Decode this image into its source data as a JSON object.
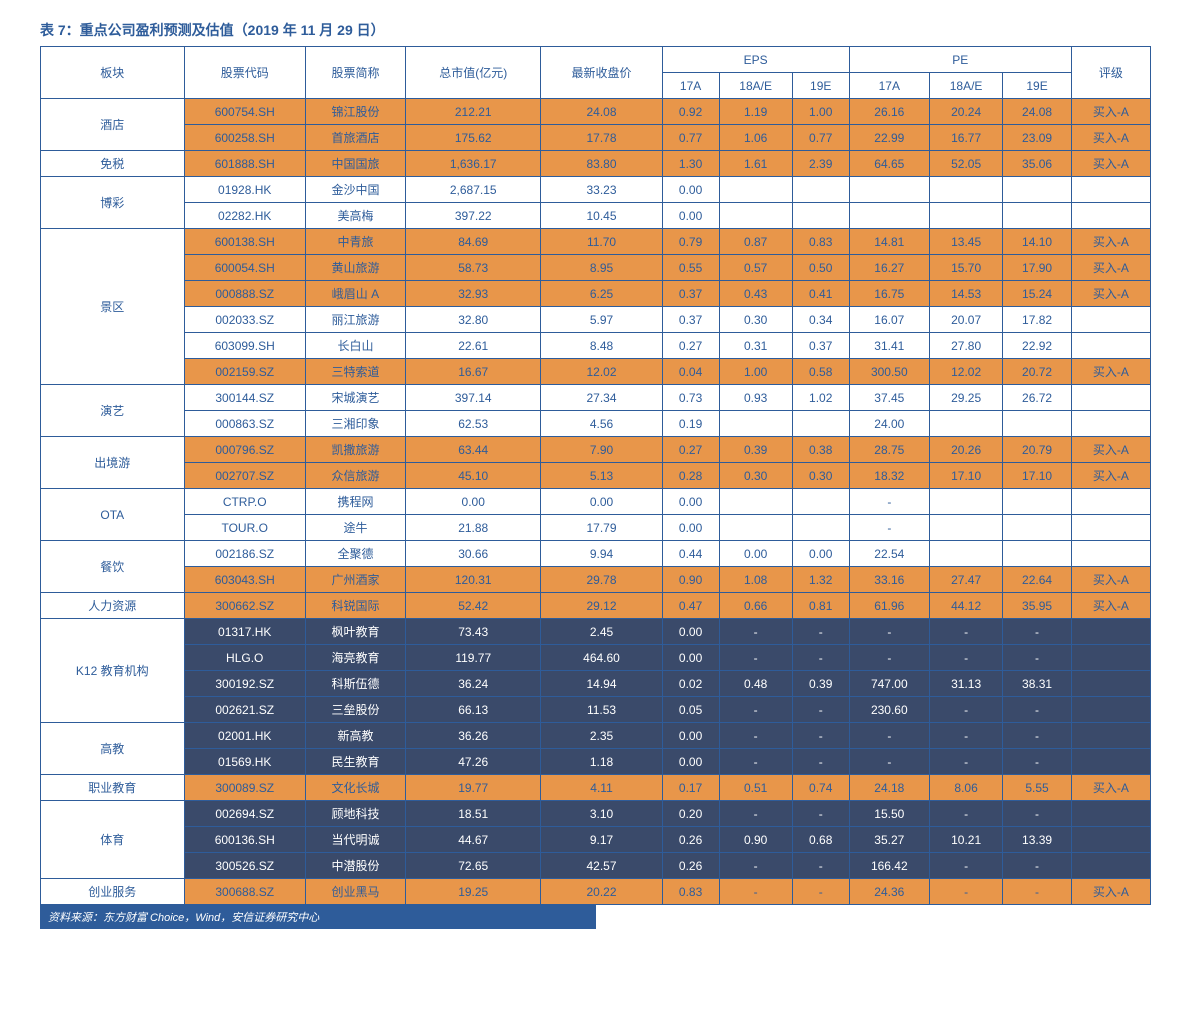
{
  "title": "表 7：重点公司盈利预测及估值（2019 年 11 月 29 日）",
  "footer": "资料来源：东方财富 Choice，Wind，安信证券研究中心",
  "columns": {
    "sector": "板块",
    "code": "股票代码",
    "name": "股票简称",
    "mktcap": "总市值(亿元)",
    "price": "最新收盘价",
    "eps": "EPS",
    "eps_17a": "17A",
    "eps_18ae": "18A/E",
    "eps_19e": "19E",
    "pe": "PE",
    "pe_17a": "17A",
    "pe_18ae": "18A/E",
    "pe_19e": "19E",
    "rating": "评级"
  },
  "colors": {
    "orange_bg": "#e8964a",
    "white_bg": "#ffffff",
    "dark_bg": "#3a4a6a",
    "border": "#2e5c9a",
    "text_blue": "#2e5c9a",
    "text_white": "#ffffff"
  },
  "groups": [
    {
      "sector": "酒店",
      "rows": [
        {
          "style": "orange",
          "code": "600754.SH",
          "name": "锦江股份",
          "mktcap": "212.21",
          "price": "24.08",
          "eps17": "0.92",
          "eps18": "1.19",
          "eps19": "1.00",
          "pe17": "26.16",
          "pe18": "20.24",
          "pe19": "24.08",
          "rating": "买入-A"
        },
        {
          "style": "orange",
          "code": "600258.SH",
          "name": "首旅酒店",
          "mktcap": "175.62",
          "price": "17.78",
          "eps17": "0.77",
          "eps18": "1.06",
          "eps19": "0.77",
          "pe17": "22.99",
          "pe18": "16.77",
          "pe19": "23.09",
          "rating": "买入-A"
        }
      ]
    },
    {
      "sector": "免税",
      "rows": [
        {
          "style": "orange",
          "code": "601888.SH",
          "name": "中国国旅",
          "mktcap": "1,636.17",
          "price": "83.80",
          "eps17": "1.30",
          "eps18": "1.61",
          "eps19": "2.39",
          "pe17": "64.65",
          "pe18": "52.05",
          "pe19": "35.06",
          "rating": "买入-A"
        }
      ]
    },
    {
      "sector": "博彩",
      "rows": [
        {
          "style": "white",
          "code": "01928.HK",
          "name": "金沙中国",
          "mktcap": "2,687.15",
          "price": "33.23",
          "eps17": "0.00",
          "eps18": "",
          "eps19": "",
          "pe17": "",
          "pe18": "",
          "pe19": "",
          "rating": ""
        },
        {
          "style": "white",
          "code": "02282.HK",
          "name": "美高梅",
          "mktcap": "397.22",
          "price": "10.45",
          "eps17": "0.00",
          "eps18": "",
          "eps19": "",
          "pe17": "",
          "pe18": "",
          "pe19": "",
          "rating": ""
        }
      ]
    },
    {
      "sector": "景区",
      "rows": [
        {
          "style": "orange",
          "code": "600138.SH",
          "name": "中青旅",
          "mktcap": "84.69",
          "price": "11.70",
          "eps17": "0.79",
          "eps18": "0.87",
          "eps19": "0.83",
          "pe17": "14.81",
          "pe18": "13.45",
          "pe19": "14.10",
          "rating": "买入-A"
        },
        {
          "style": "orange",
          "code": "600054.SH",
          "name": "黄山旅游",
          "mktcap": "58.73",
          "price": "8.95",
          "eps17": "0.55",
          "eps18": "0.57",
          "eps19": "0.50",
          "pe17": "16.27",
          "pe18": "15.70",
          "pe19": "17.90",
          "rating": "买入-A"
        },
        {
          "style": "orange",
          "code": "000888.SZ",
          "name": "峨眉山 A",
          "mktcap": "32.93",
          "price": "6.25",
          "eps17": "0.37",
          "eps18": "0.43",
          "eps19": "0.41",
          "pe17": "16.75",
          "pe18": "14.53",
          "pe19": "15.24",
          "rating": "买入-A"
        },
        {
          "style": "white",
          "code": "002033.SZ",
          "name": "丽江旅游",
          "mktcap": "32.80",
          "price": "5.97",
          "eps17": "0.37",
          "eps18": "0.30",
          "eps19": "0.34",
          "pe17": "16.07",
          "pe18": "20.07",
          "pe19": "17.82",
          "rating": ""
        },
        {
          "style": "white",
          "code": "603099.SH",
          "name": "长白山",
          "mktcap": "22.61",
          "price": "8.48",
          "eps17": "0.27",
          "eps18": "0.31",
          "eps19": "0.37",
          "pe17": "31.41",
          "pe18": "27.80",
          "pe19": "22.92",
          "rating": ""
        },
        {
          "style": "orange",
          "code": "002159.SZ",
          "name": "三特索道",
          "mktcap": "16.67",
          "price": "12.02",
          "eps17": "0.04",
          "eps18": "1.00",
          "eps19": "0.58",
          "pe17": "300.50",
          "pe18": "12.02",
          "pe19": "20.72",
          "rating": "买入-A"
        }
      ]
    },
    {
      "sector": "演艺",
      "rows": [
        {
          "style": "white",
          "code": "300144.SZ",
          "name": "宋城演艺",
          "mktcap": "397.14",
          "price": "27.34",
          "eps17": "0.73",
          "eps18": "0.93",
          "eps19": "1.02",
          "pe17": "37.45",
          "pe18": "29.25",
          "pe19": "26.72",
          "rating": ""
        },
        {
          "style": "white",
          "code": "000863.SZ",
          "name": "三湘印象",
          "mktcap": "62.53",
          "price": "4.56",
          "eps17": "0.19",
          "eps18": "",
          "eps19": "",
          "pe17": "24.00",
          "pe18": "",
          "pe19": "",
          "rating": ""
        }
      ]
    },
    {
      "sector": "出境游",
      "rows": [
        {
          "style": "orange",
          "code": "000796.SZ",
          "name": "凯撒旅游",
          "mktcap": "63.44",
          "price": "7.90",
          "eps17": "0.27",
          "eps18": "0.39",
          "eps19": "0.38",
          "pe17": "28.75",
          "pe18": "20.26",
          "pe19": "20.79",
          "rating": "买入-A"
        },
        {
          "style": "orange",
          "code": "002707.SZ",
          "name": "众信旅游",
          "mktcap": "45.10",
          "price": "5.13",
          "eps17": "0.28",
          "eps18": "0.30",
          "eps19": "0.30",
          "pe17": "18.32",
          "pe18": "17.10",
          "pe19": "17.10",
          "rating": "买入-A"
        }
      ]
    },
    {
      "sector": "OTA",
      "rows": [
        {
          "style": "white",
          "code": "CTRP.O",
          "name": "携程网",
          "mktcap": "0.00",
          "price": "0.00",
          "eps17": "0.00",
          "eps18": "",
          "eps19": "",
          "pe17": "-",
          "pe18": "",
          "pe19": "",
          "rating": ""
        },
        {
          "style": "white",
          "code": "TOUR.O",
          "name": "途牛",
          "mktcap": "21.88",
          "price": "17.79",
          "eps17": "0.00",
          "eps18": "",
          "eps19": "",
          "pe17": "-",
          "pe18": "",
          "pe19": "",
          "rating": ""
        }
      ]
    },
    {
      "sector": "餐饮",
      "rows": [
        {
          "style": "white",
          "code": "002186.SZ",
          "name": "全聚德",
          "mktcap": "30.66",
          "price": "9.94",
          "eps17": "0.44",
          "eps18": "0.00",
          "eps19": "0.00",
          "pe17": "22.54",
          "pe18": "",
          "pe19": "",
          "rating": ""
        },
        {
          "style": "orange",
          "code": "603043.SH",
          "name": "广州酒家",
          "mktcap": "120.31",
          "price": "29.78",
          "eps17": "0.90",
          "eps18": "1.08",
          "eps19": "1.32",
          "pe17": "33.16",
          "pe18": "27.47",
          "pe19": "22.64",
          "rating": "买入-A"
        }
      ]
    },
    {
      "sector": "人力资源",
      "rows": [
        {
          "style": "orange",
          "code": "300662.SZ",
          "name": "科锐国际",
          "mktcap": "52.42",
          "price": "29.12",
          "eps17": "0.47",
          "eps18": "0.66",
          "eps19": "0.81",
          "pe17": "61.96",
          "pe18": "44.12",
          "pe19": "35.95",
          "rating": "买入-A"
        }
      ]
    },
    {
      "sector": "K12 教育机构",
      "rows": [
        {
          "style": "dark",
          "code": "01317.HK",
          "name": "枫叶教育",
          "mktcap": "73.43",
          "price": "2.45",
          "eps17": "0.00",
          "eps18": "-",
          "eps19": "-",
          "pe17": "-",
          "pe18": "-",
          "pe19": "-",
          "rating": ""
        },
        {
          "style": "dark",
          "code": "HLG.O",
          "name": "海亮教育",
          "mktcap": "119.77",
          "price": "464.60",
          "eps17": "0.00",
          "eps18": "-",
          "eps19": "-",
          "pe17": "-",
          "pe18": "-",
          "pe19": "-",
          "rating": ""
        },
        {
          "style": "dark",
          "code": "300192.SZ",
          "name": "科斯伍德",
          "mktcap": "36.24",
          "price": "14.94",
          "eps17": "0.02",
          "eps18": "0.48",
          "eps19": "0.39",
          "pe17": "747.00",
          "pe18": "31.13",
          "pe19": "38.31",
          "rating": ""
        },
        {
          "style": "dark",
          "code": "002621.SZ",
          "name": "三垒股份",
          "mktcap": "66.13",
          "price": "11.53",
          "eps17": "0.05",
          "eps18": "-",
          "eps19": "-",
          "pe17": "230.60",
          "pe18": "-",
          "pe19": "-",
          "rating": ""
        }
      ]
    },
    {
      "sector": "高教",
      "rows": [
        {
          "style": "dark",
          "code": "02001.HK",
          "name": "新高教",
          "mktcap": "36.26",
          "price": "2.35",
          "eps17": "0.00",
          "eps18": "-",
          "eps19": "-",
          "pe17": "-",
          "pe18": "-",
          "pe19": "-",
          "rating": ""
        },
        {
          "style": "dark",
          "code": "01569.HK",
          "name": "民生教育",
          "mktcap": "47.26",
          "price": "1.18",
          "eps17": "0.00",
          "eps18": "-",
          "eps19": "-",
          "pe17": "-",
          "pe18": "-",
          "pe19": "-",
          "rating": ""
        }
      ]
    },
    {
      "sector": "职业教育",
      "rows": [
        {
          "style": "orange",
          "code": "300089.SZ",
          "name": "文化长城",
          "mktcap": "19.77",
          "price": "4.11",
          "eps17": "0.17",
          "eps18": "0.51",
          "eps19": "0.74",
          "pe17": "24.18",
          "pe18": "8.06",
          "pe19": "5.55",
          "rating": "买入-A"
        }
      ]
    },
    {
      "sector": "体育",
      "rows": [
        {
          "style": "dark",
          "code": "002694.SZ",
          "name": "顾地科技",
          "mktcap": "18.51",
          "price": "3.10",
          "eps17": "0.20",
          "eps18": "-",
          "eps19": "-",
          "pe17": "15.50",
          "pe18": "-",
          "pe19": "-",
          "rating": ""
        },
        {
          "style": "dark",
          "code": "600136.SH",
          "name": "当代明诚",
          "mktcap": "44.67",
          "price": "9.17",
          "eps17": "0.26",
          "eps18": "0.90",
          "eps19": "0.68",
          "pe17": "35.27",
          "pe18": "10.21",
          "pe19": "13.39",
          "rating": ""
        },
        {
          "style": "dark",
          "code": "300526.SZ",
          "name": "中潜股份",
          "mktcap": "72.65",
          "price": "42.57",
          "eps17": "0.26",
          "eps18": "-",
          "eps19": "-",
          "pe17": "166.42",
          "pe18": "-",
          "pe19": "-",
          "rating": ""
        }
      ]
    },
    {
      "sector": "创业服务",
      "rows": [
        {
          "style": "orange",
          "code": "300688.SZ",
          "name": "创业黑马",
          "mktcap": "19.25",
          "price": "20.22",
          "eps17": "0.83",
          "eps18": "-",
          "eps19": "-",
          "pe17": "24.36",
          "pe18": "-",
          "pe19": "-",
          "rating": "买入-A"
        }
      ]
    }
  ]
}
